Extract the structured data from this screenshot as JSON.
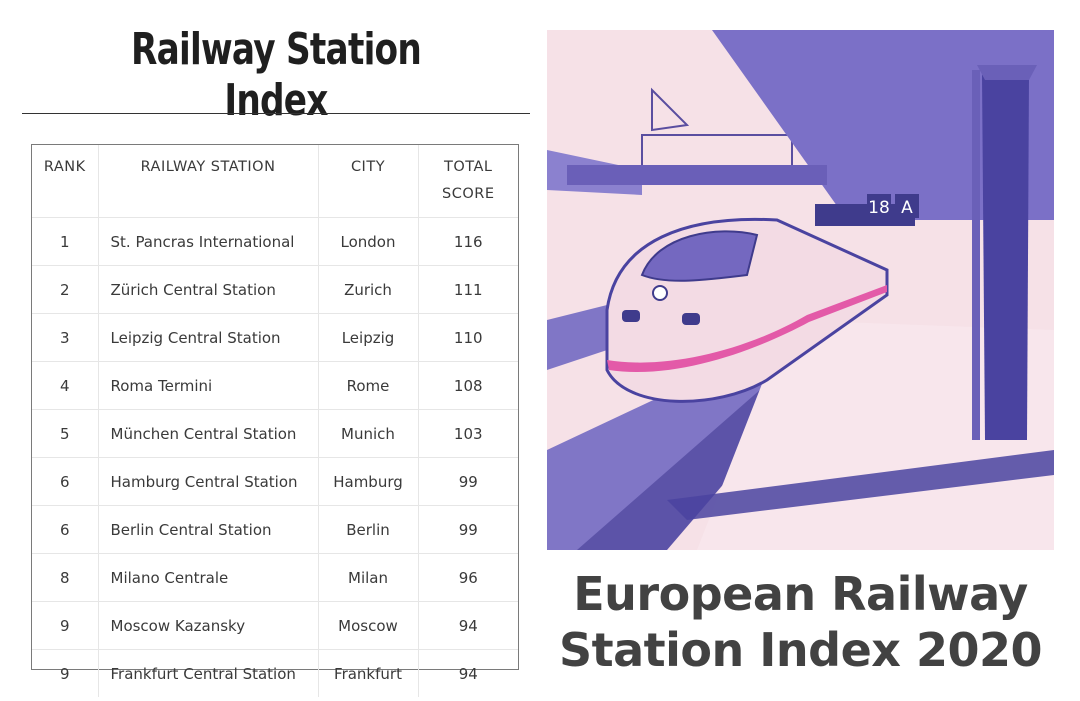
{
  "heading": "Railway Station Index",
  "table": {
    "headers": {
      "rank": "RANK",
      "station": "RAILWAY STATION",
      "city": "CITY",
      "score_line1": "TOTAL",
      "score_line2": "SCORE"
    },
    "rows": [
      {
        "rank": "1",
        "station": "St. Pancras International",
        "city": "London",
        "score": "116"
      },
      {
        "rank": "2",
        "station": "Zürich Central Station",
        "city": "Zurich",
        "score": "111"
      },
      {
        "rank": "3",
        "station": "Leipzig Central Station",
        "city": "Leipzig",
        "score": "110"
      },
      {
        "rank": "4",
        "station": "Roma Termini",
        "city": "Rome",
        "score": "108"
      },
      {
        "rank": "5",
        "station": "München Central Station",
        "city": "Munich",
        "score": "103"
      },
      {
        "rank": "6",
        "station": "Hamburg Central Station",
        "city": "Hamburg",
        "score": "99"
      },
      {
        "rank": "6",
        "station": "Berlin Central Station",
        "city": "Berlin",
        "score": "99"
      },
      {
        "rank": "8",
        "station": "Milano Centrale",
        "city": "Milan",
        "score": "96"
      },
      {
        "rank": "9",
        "station": "Moscow Kazansky",
        "city": "Moscow",
        "score": "94"
      },
      {
        "rank": "9",
        "station": "Frankfurt Central Station",
        "city": "Frankfurt",
        "score": "94"
      }
    ]
  },
  "illustration": {
    "platform_sign_number": "18",
    "platform_sign_letter": "A",
    "colors": {
      "purple": "#7468c0",
      "dark_purple": "#3f3b8c",
      "pink": "#f6e1e7",
      "stripe": "#e35aa8"
    }
  },
  "poster_title": {
    "line1": "European Railway",
    "line2": "Station Index 2020"
  }
}
